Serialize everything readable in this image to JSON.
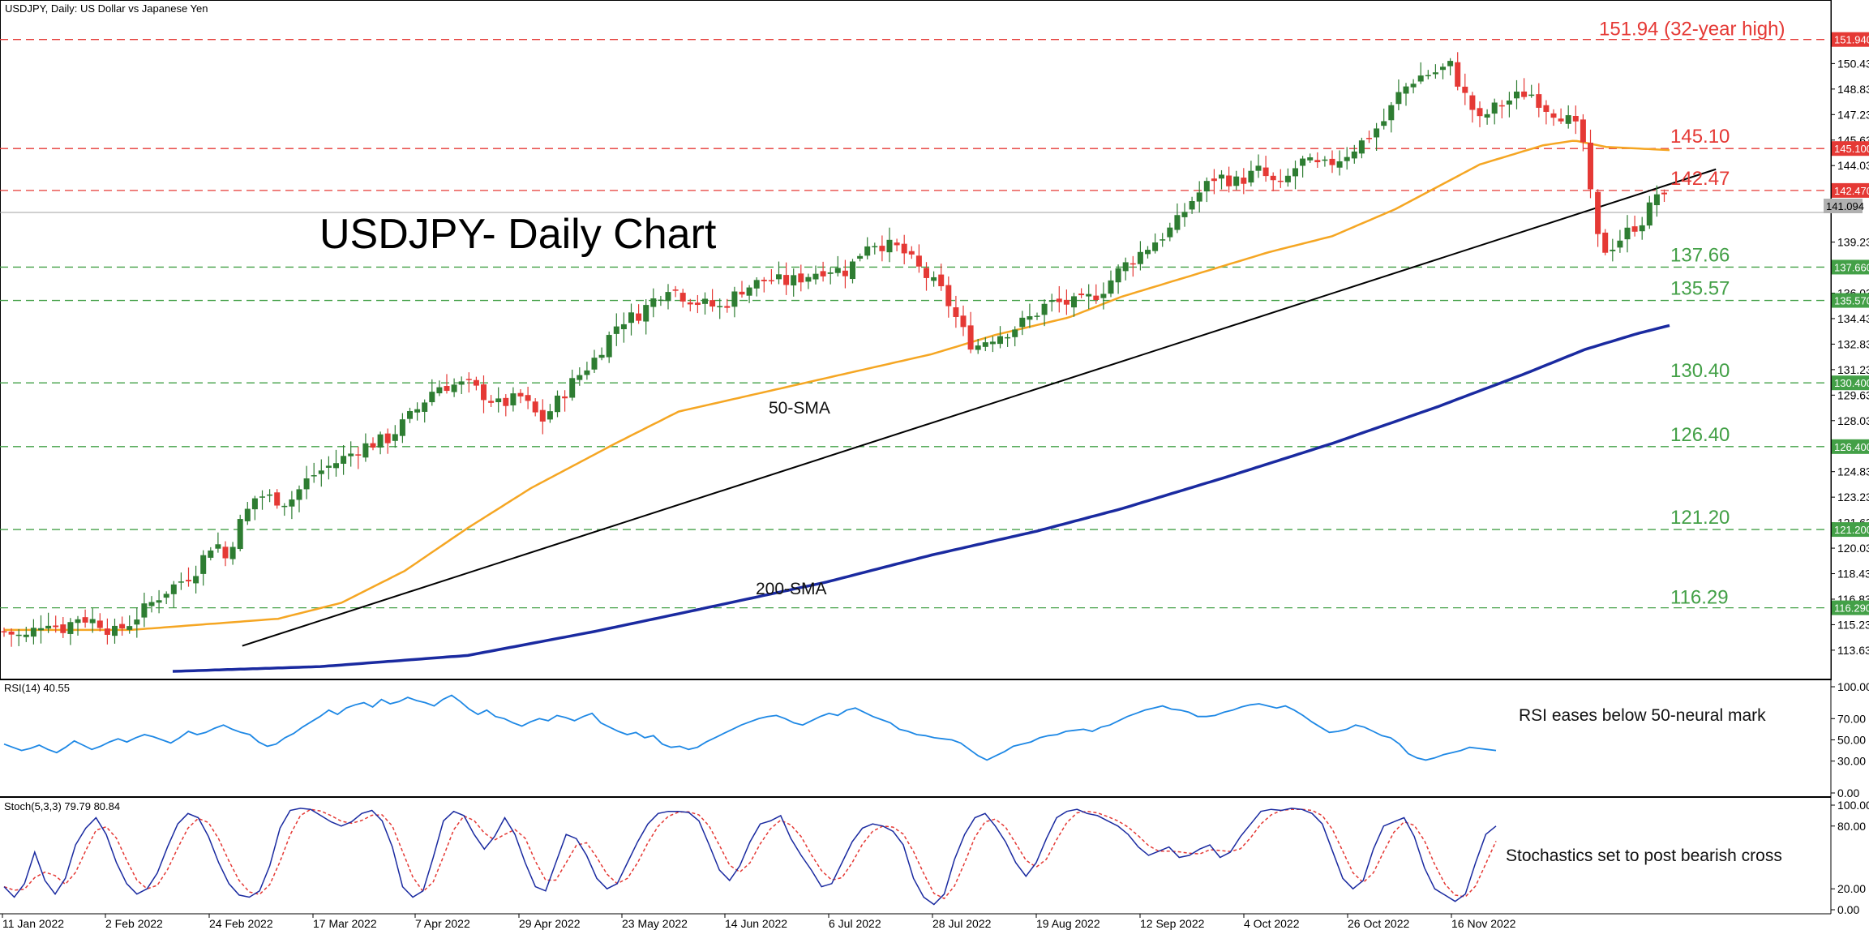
{
  "chart_data": {
    "type": "candlestick",
    "symbol_line": "USDJPY, Daily:  US Dollar vs Japanese Yen",
    "title": "USDJPY- Daily Chart",
    "price_axis": {
      "ylim": [
        112.2,
        153.4
      ],
      "ticks": [
        "151.940",
        "150.430",
        "148.830",
        "147.230",
        "145.630",
        "145.100",
        "144.030",
        "142.470",
        "141.094",
        "139.230",
        "137.660",
        "136.030",
        "135.570",
        "134.430",
        "132.830",
        "131.230",
        "130.400",
        "129.630",
        "128.030",
        "126.400",
        "124.830",
        "123.230",
        "121.630",
        "121.200",
        "120.030",
        "118.430",
        "116.830",
        "116.290",
        "115.230",
        "113.630"
      ]
    },
    "x_labels": [
      "11 Jan 2022",
      "2 Feb 2022",
      "24 Feb 2022",
      "17 Mar 2022",
      "7 Apr 2022",
      "29 Apr 2022",
      "23 May 2022",
      "14 Jun 2022",
      "6 Jul 2022",
      "28 Jul 2022",
      "19 Aug 2022",
      "12 Sep 2022",
      "4 Oct 2022",
      "26 Oct 2022",
      "16 Nov 2022"
    ],
    "current_price": "141.094",
    "levels": [
      {
        "value": 151.94,
        "label": "151.94 (32-year high)",
        "tag": "151.940",
        "color": "#e53935"
      },
      {
        "value": 145.1,
        "label": "145.10",
        "tag": "145.100",
        "color": "#e53935"
      },
      {
        "value": 142.47,
        "label": "142.47",
        "tag": "142.470",
        "color": "#e53935"
      },
      {
        "value": 137.66,
        "label": "137.66",
        "tag": "137.660",
        "color": "#43a047"
      },
      {
        "value": 135.57,
        "label": "135.57",
        "tag": "135.570",
        "color": "#43a047"
      },
      {
        "value": 130.4,
        "label": "130.40",
        "tag": "130.400",
        "color": "#43a047"
      },
      {
        "value": 126.4,
        "label": "126.40",
        "tag": "126.400",
        "color": "#43a047"
      },
      {
        "value": 121.2,
        "label": "121.20",
        "tag": "121.200",
        "color": "#43a047"
      },
      {
        "value": 116.29,
        "label": "116.29",
        "tag": "116.290",
        "color": "#43a047"
      }
    ],
    "sma_labels": {
      "sma50": "50-SMA",
      "sma200": "200-SMA"
    },
    "colors": {
      "up": "#2e7d32",
      "down": "#e53935",
      "sma50": "#f5a623",
      "sma200": "#1a2aa0",
      "trend": "#000000",
      "rsi": "#1e88e5",
      "stoch_main": "#1a2aa0",
      "stoch_signal": "#e53935"
    },
    "price_path": [
      [
        0,
        114.8
      ],
      [
        10,
        114.4
      ],
      [
        20,
        115.6
      ],
      [
        27,
        114.9
      ],
      [
        35,
        115.7
      ],
      [
        45,
        115.4
      ],
      [
        52,
        114.7
      ],
      [
        60,
        115.4
      ],
      [
        75,
        117.2
      ],
      [
        90,
        118.5
      ],
      [
        100,
        120.6
      ],
      [
        105,
        119.4
      ],
      [
        112,
        121.6
      ],
      [
        120,
        123.4
      ],
      [
        135,
        122.9
      ],
      [
        145,
        124.5
      ],
      [
        160,
        125.6
      ],
      [
        170,
        126.4
      ],
      [
        182,
        126.9
      ],
      [
        195,
        128.6
      ],
      [
        205,
        130.2
      ],
      [
        220,
        130.3
      ],
      [
        235,
        129.0
      ],
      [
        245,
        129.5
      ],
      [
        255,
        128.0
      ],
      [
        270,
        130.5
      ],
      [
        280,
        131.9
      ],
      [
        292,
        134.3
      ],
      [
        300,
        134.6
      ],
      [
        315,
        136.5
      ],
      [
        320,
        136.0
      ],
      [
        330,
        135.4
      ],
      [
        340,
        135.1
      ],
      [
        350,
        136.3
      ],
      [
        362,
        136.9
      ],
      [
        372,
        136.7
      ],
      [
        390,
        137.6
      ],
      [
        400,
        137.4
      ],
      [
        410,
        139.3
      ],
      [
        425,
        138.8
      ],
      [
        435,
        137.4
      ],
      [
        445,
        136.1
      ],
      [
        455,
        133.6
      ],
      [
        460,
        132.6
      ],
      [
        467,
        133.2
      ],
      [
        477,
        133.7
      ],
      [
        487,
        134.5
      ],
      [
        495,
        135.4
      ],
      [
        510,
        135.4
      ],
      [
        520,
        136.1
      ],
      [
        530,
        137.6
      ],
      [
        545,
        139.2
      ],
      [
        555,
        140.2
      ],
      [
        563,
        141.8
      ],
      [
        575,
        143.4
      ],
      [
        585,
        143.0
      ],
      [
        595,
        143.7
      ],
      [
        605,
        142.6
      ],
      [
        615,
        144.3
      ],
      [
        625,
        143.9
      ],
      [
        635,
        144.6
      ],
      [
        645,
        145.6
      ],
      [
        655,
        146.9
      ],
      [
        662,
        148.6
      ],
      [
        670,
        149.6
      ],
      [
        679,
        149.9
      ],
      [
        686,
        150.3
      ],
      [
        692,
        148.6
      ],
      [
        700,
        146.8
      ],
      [
        705,
        147.5
      ],
      [
        715,
        148.2
      ],
      [
        723,
        148.7
      ],
      [
        733,
        147.5
      ],
      [
        738,
        147.3
      ],
      [
        745,
        146.5
      ],
      [
        750,
        145.2
      ],
      [
        752,
        142.6
      ],
      [
        755,
        139.6
      ],
      [
        760,
        138.7
      ],
      [
        766,
        139.4
      ],
      [
        773,
        140.2
      ],
      [
        778,
        140.7
      ],
      [
        784,
        142.3
      ],
      [
        788,
        141.8
      ],
      [
        792,
        141.1
      ]
    ],
    "sma50_path": [
      [
        0,
        114.9
      ],
      [
        60,
        114.9
      ],
      [
        130,
        115.6
      ],
      [
        160,
        116.6
      ],
      [
        190,
        118.6
      ],
      [
        220,
        121.3
      ],
      [
        250,
        123.8
      ],
      [
        290,
        126.6
      ],
      [
        320,
        128.6
      ],
      [
        350,
        129.5
      ],
      [
        390,
        130.7
      ],
      [
        440,
        132.2
      ],
      [
        470,
        133.4
      ],
      [
        505,
        134.5
      ],
      [
        530,
        135.8
      ],
      [
        560,
        137.0
      ],
      [
        600,
        138.6
      ],
      [
        630,
        139.6
      ],
      [
        660,
        141.3
      ],
      [
        700,
        144.1
      ],
      [
        730,
        145.3
      ],
      [
        745,
        145.6
      ],
      [
        760,
        145.2
      ],
      [
        775,
        145.1
      ],
      [
        790,
        145.0
      ]
    ],
    "sma200_path": [
      [
        80,
        112.3
      ],
      [
        150,
        112.6
      ],
      [
        220,
        113.3
      ],
      [
        280,
        114.8
      ],
      [
        330,
        116.2
      ],
      [
        390,
        117.9
      ],
      [
        440,
        119.6
      ],
      [
        490,
        121.1
      ],
      [
        530,
        122.5
      ],
      [
        580,
        124.5
      ],
      [
        630,
        126.6
      ],
      [
        680,
        128.9
      ],
      [
        720,
        130.9
      ],
      [
        750,
        132.5
      ],
      [
        775,
        133.5
      ],
      [
        790,
        134.0
      ]
    ],
    "trendline": {
      "start": [
        113,
        113.9
      ],
      "end": [
        812,
        143.8
      ]
    },
    "rsi": {
      "label": "RSI(14) 40.55",
      "value": 40.55,
      "ylim": [
        0,
        100
      ],
      "ticks": [
        "100.00",
        "70.00",
        "50.00",
        "30.00",
        "0.00"
      ],
      "annotation": "RSI eases below 50-neural mark",
      "values": [
        46,
        43,
        40,
        42,
        45,
        41,
        38,
        43,
        49,
        45,
        41,
        44,
        48,
        51,
        48,
        52,
        55,
        53,
        50,
        47,
        52,
        58,
        55,
        57,
        61,
        64,
        60,
        57,
        55,
        48,
        44,
        46,
        52,
        56,
        62,
        67,
        72,
        78,
        74,
        80,
        83,
        85,
        81,
        88,
        84,
        86,
        90,
        87,
        85,
        82,
        88,
        92,
        86,
        79,
        74,
        78,
        72,
        70,
        66,
        63,
        67,
        70,
        68,
        73,
        71,
        68,
        72,
        75,
        66,
        62,
        58,
        55,
        57,
        52,
        54,
        46,
        43,
        44,
        41,
        43,
        48,
        52,
        56,
        60,
        64,
        67,
        70,
        72,
        73,
        70,
        66,
        64,
        68,
        72,
        75,
        73,
        78,
        80,
        76,
        72,
        69,
        66,
        60,
        58,
        55,
        54,
        52,
        51,
        50,
        47,
        41,
        35,
        31,
        35,
        39,
        44,
        46,
        48,
        52,
        54,
        55,
        58,
        59,
        60,
        58,
        62,
        64,
        68,
        72,
        75,
        78,
        80,
        82,
        79,
        78,
        76,
        72,
        72,
        73,
        76,
        78,
        81,
        83,
        84,
        82,
        80,
        82,
        78,
        73,
        67,
        62,
        57,
        58,
        60,
        64,
        62,
        58,
        54,
        52,
        46,
        37,
        33,
        31,
        33,
        36,
        38,
        40,
        43,
        42,
        41,
        40
      ]
    },
    "stoch": {
      "label": "Stoch(5,3,3) 79.79 80.84",
      "main": 79.79,
      "signal": 80.84,
      "ylim": [
        0,
        100
      ],
      "ticks": [
        "100.00",
        "80.00",
        "20.00",
        "0.00"
      ],
      "annotation": "Stochastics set to post bearish cross",
      "main_values": [
        22,
        12,
        25,
        55,
        28,
        15,
        30,
        62,
        78,
        88,
        72,
        45,
        25,
        15,
        20,
        35,
        60,
        82,
        92,
        88,
        70,
        45,
        25,
        14,
        12,
        18,
        42,
        78,
        95,
        97,
        96,
        90,
        84,
        80,
        84,
        92,
        95,
        85,
        60,
        22,
        12,
        18,
        50,
        85,
        94,
        90,
        72,
        58,
        70,
        88,
        72,
        45,
        22,
        18,
        45,
        72,
        68,
        52,
        30,
        20,
        25,
        45,
        65,
        82,
        92,
        94,
        94,
        93,
        85,
        62,
        38,
        28,
        42,
        65,
        82,
        85,
        90,
        68,
        52,
        38,
        22,
        25,
        45,
        65,
        78,
        82,
        80,
        75,
        62,
        30,
        12,
        5,
        15,
        48,
        72,
        88,
        92,
        80,
        65,
        45,
        32,
        45,
        68,
        88,
        94,
        96,
        92,
        90,
        85,
        80,
        72,
        60,
        52,
        56,
        60,
        50,
        52,
        58,
        62,
        50,
        55,
        70,
        82,
        94,
        96,
        95,
        97,
        96,
        92,
        82,
        56,
        30,
        20,
        28,
        58,
        80,
        84,
        88,
        70,
        40,
        20,
        14,
        8,
        15,
        45,
        72,
        80
      ]
    }
  }
}
